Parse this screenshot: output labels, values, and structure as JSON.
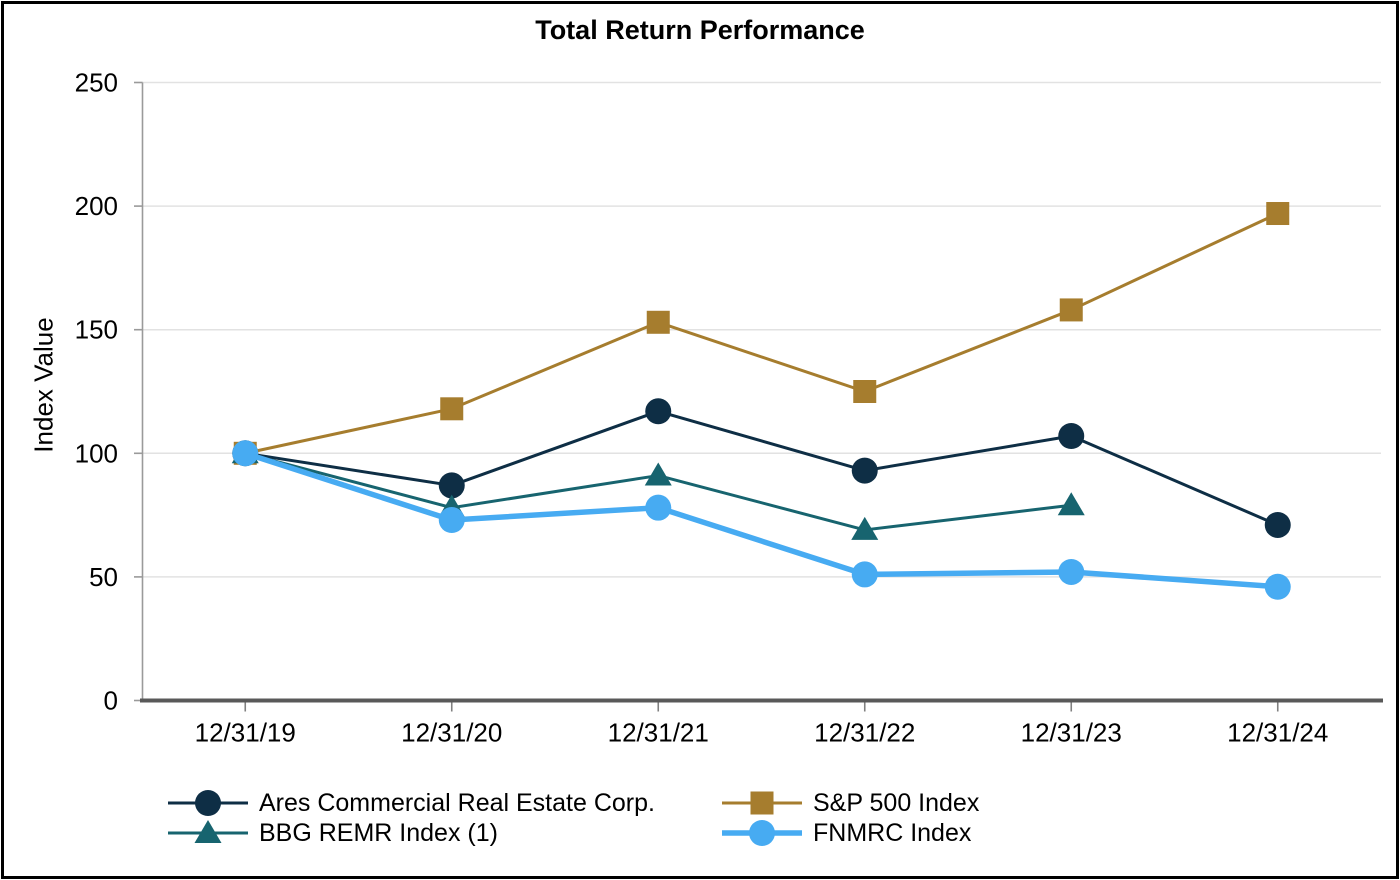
{
  "chart_data": {
    "type": "line",
    "title": "Total Return Performance",
    "xlabel": "",
    "ylabel": "Index Value",
    "ylim": [
      0,
      250
    ],
    "ytick_interval": 50,
    "yticks": [
      0,
      50,
      100,
      150,
      200,
      250
    ],
    "grid": "horizontal",
    "legend_position": "bottom",
    "categories": [
      "12/31/19",
      "12/31/20",
      "12/31/21",
      "12/31/22",
      "12/31/23",
      "12/31/24"
    ],
    "series": [
      {
        "name": "Ares Commercial Real Estate Corp.",
        "marker": "circle",
        "color": "#0e2e45",
        "line_width": 3,
        "values": [
          100,
          87,
          117,
          93,
          107,
          71
        ]
      },
      {
        "name": "S&P 500 Index",
        "marker": "square",
        "color": "#a67d2e",
        "line_width": 3,
        "values": [
          100,
          118,
          153,
          125,
          158,
          197
        ]
      },
      {
        "name": "BBG REMR Index (1)",
        "marker": "triangle",
        "color": "#17646f",
        "line_width": 3,
        "values": [
          100,
          78,
          91,
          69,
          79,
          null
        ]
      },
      {
        "name": "FNMRC Index",
        "marker": "circle",
        "color": "#47abf2",
        "line_width": 5.5,
        "values": [
          100,
          73,
          78,
          51,
          52,
          46
        ]
      }
    ],
    "style": {
      "gridline_color": "#e2e2e2",
      "y_axis_color": "#9a9a9a",
      "x_axis_color": "#595959",
      "x_tick_color": "#808080",
      "text_color": "#000000",
      "background": "#ffffff",
      "border_color": "#000000"
    }
  }
}
